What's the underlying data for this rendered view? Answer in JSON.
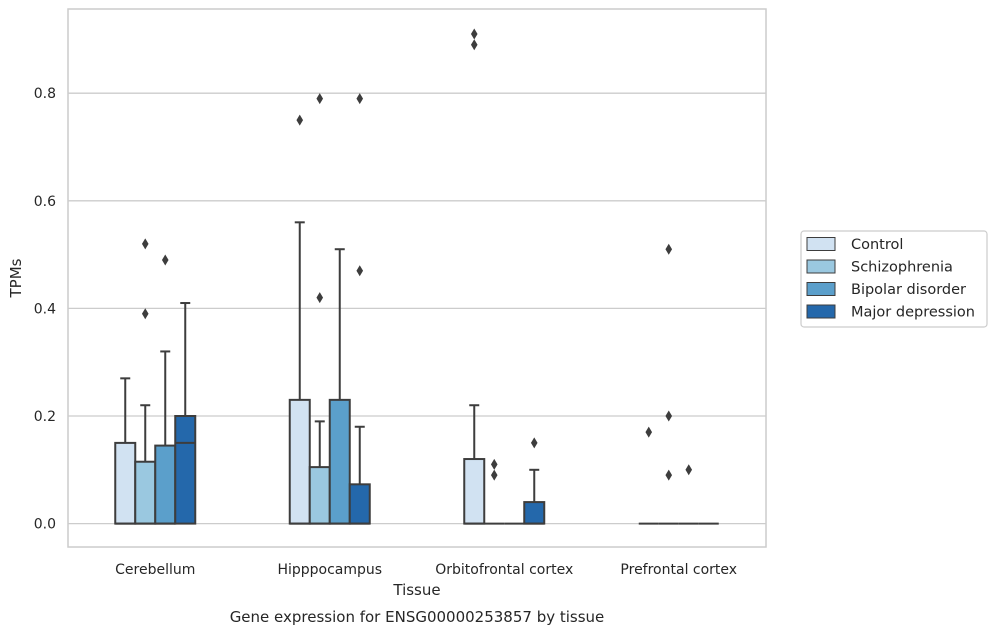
{
  "chart_data": {
    "type": "box",
    "title": "",
    "caption": "Gene expression for ENSG00000253857 by tissue",
    "xlabel": "Tissue",
    "ylabel": "TPMs",
    "categories": [
      "Cerebellum",
      "Hipppocampus",
      "Orbitofrontal cortex",
      "Prefrontal cortex"
    ],
    "ylim": [
      -0.045,
      0.955
    ],
    "yticks": [
      0.0,
      0.2,
      0.4,
      0.6,
      0.8
    ],
    "ytick_labels": [
      "0.0",
      "0.2",
      "0.4",
      "0.6",
      "0.8"
    ],
    "grid": "horizontal",
    "legend": {
      "placement": "right",
      "labels": [
        "Control",
        "Schizophrenia",
        "Bipolar disorder",
        "Major depression"
      ]
    },
    "colors": [
      "#d1e2f2",
      "#9ac8e0",
      "#5b9fcb",
      "#2468ab"
    ],
    "edge_color": "#3d3d3d",
    "series": [
      {
        "name": "Control",
        "boxes": [
          {
            "q1": 0.0,
            "median": 0.0,
            "q3": 0.15,
            "whisker_low": 0.0,
            "whisker_high": 0.27,
            "outliers": []
          },
          {
            "q1": 0.0,
            "median": 0.0,
            "q3": 0.23,
            "whisker_low": 0.0,
            "whisker_high": 0.56,
            "outliers": [
              0.75
            ]
          },
          {
            "q1": 0.0,
            "median": 0.0,
            "q3": 0.12,
            "whisker_low": 0.0,
            "whisker_high": 0.22,
            "outliers": [
              0.89,
              0.91
            ]
          },
          {
            "q1": 0.0,
            "median": 0.0,
            "q3": 0.0,
            "whisker_low": 0.0,
            "whisker_high": 0.0,
            "outliers": [
              0.17
            ]
          }
        ]
      },
      {
        "name": "Schizophrenia",
        "boxes": [
          {
            "q1": 0.0,
            "median": 0.0,
            "q3": 0.115,
            "whisker_low": 0.0,
            "whisker_high": 0.22,
            "outliers": [
              0.39,
              0.52
            ]
          },
          {
            "q1": 0.0,
            "median": 0.0,
            "q3": 0.105,
            "whisker_low": 0.0,
            "whisker_high": 0.19,
            "outliers": [
              0.42,
              0.79
            ]
          },
          {
            "q1": 0.0,
            "median": 0.0,
            "q3": 0.0,
            "whisker_low": 0.0,
            "whisker_high": 0.0,
            "outliers": [
              0.09,
              0.11
            ]
          },
          {
            "q1": 0.0,
            "median": 0.0,
            "q3": 0.0,
            "whisker_low": 0.0,
            "whisker_high": 0.0,
            "outliers": [
              0.09,
              0.2,
              0.51
            ]
          }
        ]
      },
      {
        "name": "Bipolar disorder",
        "boxes": [
          {
            "q1": 0.0,
            "median": 0.0,
            "q3": 0.145,
            "whisker_low": 0.0,
            "whisker_high": 0.32,
            "outliers": [
              0.49
            ]
          },
          {
            "q1": 0.0,
            "median": 0.0,
            "q3": 0.23,
            "whisker_low": 0.0,
            "whisker_high": 0.51,
            "outliers": []
          },
          {
            "q1": 0.0,
            "median": 0.0,
            "q3": 0.0,
            "whisker_low": 0.0,
            "whisker_high": 0.0,
            "outliers": []
          },
          {
            "q1": 0.0,
            "median": 0.0,
            "q3": 0.0,
            "whisker_low": 0.0,
            "whisker_high": 0.0,
            "outliers": [
              0.1
            ]
          }
        ]
      },
      {
        "name": "Major depression",
        "boxes": [
          {
            "q1": 0.0,
            "median": 0.15,
            "q3": 0.2,
            "whisker_low": 0.0,
            "whisker_high": 0.41,
            "outliers": []
          },
          {
            "q1": 0.0,
            "median": 0.0,
            "q3": 0.073,
            "whisker_low": 0.0,
            "whisker_high": 0.18,
            "outliers": [
              0.47,
              0.79
            ]
          },
          {
            "q1": 0.0,
            "median": 0.0,
            "q3": 0.04,
            "whisker_low": 0.0,
            "whisker_high": 0.1,
            "outliers": [
              0.15
            ]
          },
          {
            "q1": 0.0,
            "median": 0.0,
            "q3": 0.0,
            "whisker_low": 0.0,
            "whisker_high": 0.0,
            "outliers": []
          }
        ]
      }
    ]
  }
}
